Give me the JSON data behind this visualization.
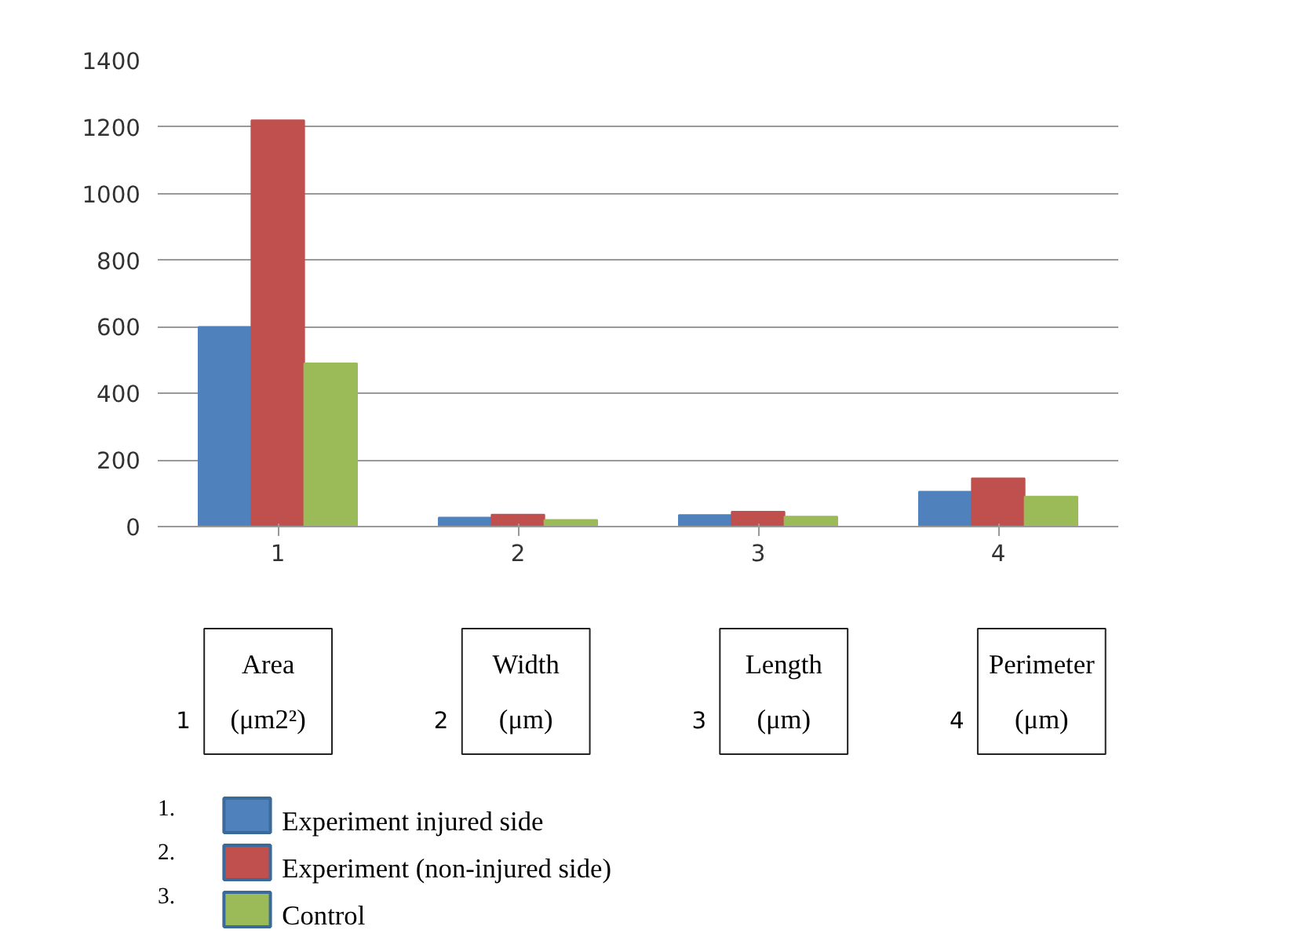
{
  "chart_data": {
    "type": "bar",
    "categories": [
      "1",
      "2",
      "3",
      "4"
    ],
    "series": [
      {
        "name": "Experiment   injured side",
        "color": "#4f81bd",
        "values": [
          600,
          27,
          35,
          105
        ]
      },
      {
        "name": "Experiment (non-injured side)",
        "color": "#c0504d",
        "values": [
          1220,
          36,
          45,
          145
        ]
      },
      {
        "name": "Control",
        "color": "#9bbb59",
        "values": [
          490,
          20,
          30,
          90
        ]
      }
    ],
    "ylim": [
      0,
      1400
    ],
    "yticks": [
      0,
      200,
      400,
      600,
      800,
      1000,
      1200,
      1400
    ],
    "grid": "y",
    "legend": "bottom",
    "annotations": [
      "1",
      "Area\n(μm2²)",
      "2",
      "Width\n(μm)",
      "3",
      "Length\n(μm)",
      "4",
      "Perimeter\n(μm)",
      "1.",
      "2.",
      "3."
    ]
  }
}
